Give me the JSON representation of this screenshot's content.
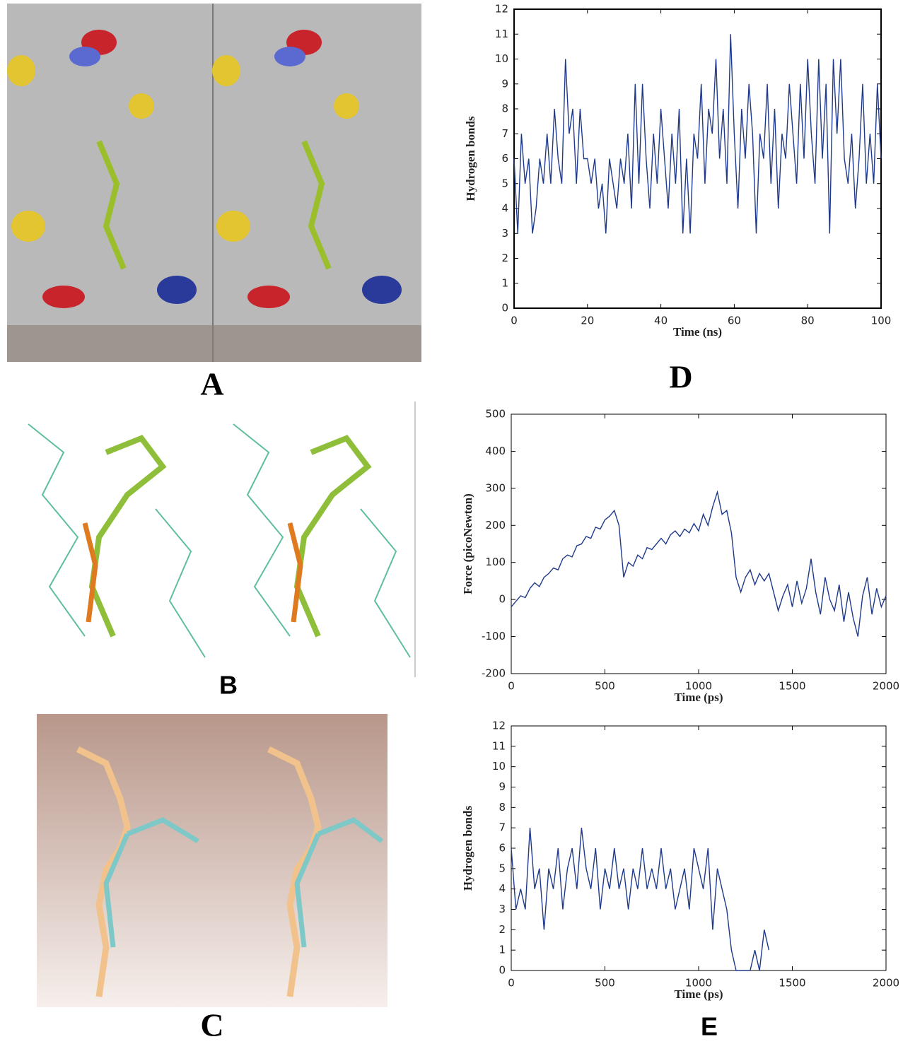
{
  "panels": [
    "A",
    "B",
    "C",
    "D",
    "E"
  ],
  "chart_data": [
    {
      "type": "line",
      "xlabel": "Time (ns)",
      "ylabel": "Hydrogen bonds",
      "x": [
        0,
        1,
        2,
        3,
        4,
        5,
        6,
        7,
        8,
        9,
        10,
        11,
        12,
        13,
        14,
        15,
        16,
        17,
        18,
        19,
        20,
        21,
        22,
        23,
        24,
        25,
        26,
        27,
        28,
        29,
        30,
        31,
        32,
        33,
        34,
        35,
        36,
        37,
        38,
        39,
        40,
        41,
        42,
        43,
        44,
        45,
        46,
        47,
        48,
        49,
        50,
        51,
        52,
        53,
        54,
        55,
        56,
        57,
        58,
        59,
        60,
        61,
        62,
        63,
        64,
        65,
        66,
        67,
        68,
        69,
        70,
        71,
        72,
        73,
        74,
        75,
        76,
        77,
        78,
        79,
        80,
        81,
        82,
        83,
        84,
        85,
        86,
        87,
        88,
        89,
        90,
        91,
        92,
        93,
        94,
        95,
        96,
        97,
        98,
        99,
        100
      ],
      "series": [
        {
          "color": "#1f3a8a",
          "values": [
            6,
            3,
            7,
            5,
            6,
            3,
            4,
            6,
            5,
            7,
            5,
            8,
            6,
            5,
            10,
            7,
            8,
            5,
            8,
            6,
            6,
            5,
            6,
            4,
            5,
            3,
            6,
            5,
            4,
            6,
            5,
            7,
            4,
            9,
            5,
            9,
            6,
            4,
            7,
            5,
            8,
            6,
            4,
            7,
            5,
            8,
            3,
            6,
            3,
            7,
            6,
            9,
            5,
            8,
            7,
            10,
            6,
            8,
            5,
            11,
            7,
            4,
            8,
            6,
            9,
            7,
            3,
            7,
            6,
            9,
            5,
            8,
            4,
            7,
            6,
            9,
            7,
            5,
            9,
            6,
            10,
            7,
            5,
            10,
            6,
            9,
            3,
            10,
            7,
            10,
            6,
            5,
            7,
            4,
            6,
            9,
            5,
            7,
            5,
            9,
            6
          ]
        }
      ],
      "xlim": [
        0,
        100
      ],
      "ylim": [
        0,
        12
      ],
      "xticks": [
        0,
        20,
        40,
        60,
        80,
        100
      ],
      "yticks": [
        0,
        1,
        2,
        3,
        4,
        5,
        6,
        7,
        8,
        9,
        10,
        11,
        12
      ]
    },
    {
      "type": "line",
      "xlabel": "Time (ps)",
      "ylabel": "Force (picoNewton)",
      "x": [
        0,
        25,
        50,
        75,
        100,
        125,
        150,
        175,
        200,
        225,
        250,
        275,
        300,
        325,
        350,
        375,
        400,
        425,
        450,
        475,
        500,
        525,
        550,
        575,
        600,
        625,
        650,
        675,
        700,
        725,
        750,
        775,
        800,
        825,
        850,
        875,
        900,
        925,
        950,
        975,
        1000,
        1025,
        1050,
        1075,
        1100,
        1125,
        1150,
        1175,
        1200,
        1225,
        1250,
        1275,
        1300,
        1325,
        1350,
        1375,
        1400,
        1425,
        1450,
        1475,
        1500,
        1525,
        1550,
        1575,
        1600,
        1625,
        1650,
        1675,
        1700,
        1725,
        1750,
        1775,
        1800,
        1825,
        1850,
        1875,
        1900,
        1925,
        1950,
        1975,
        2000
      ],
      "series": [
        {
          "color": "#1f3a8a",
          "values": [
            -20,
            -5,
            10,
            5,
            30,
            45,
            35,
            60,
            70,
            85,
            80,
            110,
            120,
            115,
            145,
            150,
            170,
            165,
            195,
            190,
            215,
            225,
            240,
            200,
            60,
            100,
            90,
            120,
            110,
            140,
            135,
            150,
            165,
            150,
            175,
            185,
            170,
            190,
            180,
            205,
            185,
            230,
            200,
            250,
            290,
            230,
            240,
            180,
            60,
            20,
            60,
            80,
            40,
            70,
            50,
            70,
            20,
            -30,
            10,
            40,
            -20,
            50,
            -10,
            30,
            110,
            20,
            -40,
            60,
            0,
            -30,
            40,
            -60,
            20,
            -50,
            -100,
            10,
            60,
            -40,
            30,
            -20,
            10
          ]
        }
      ],
      "xlim": [
        0,
        2000
      ],
      "ylim": [
        -200,
        500
      ],
      "xticks": [
        0,
        500,
        1000,
        1500,
        2000
      ],
      "yticks": [
        -200,
        -100,
        0,
        100,
        200,
        300,
        400,
        500
      ]
    },
    {
      "type": "line",
      "xlabel": "Time (ps)",
      "ylabel": "Hydrogen bonds",
      "x": [
        0,
        25,
        50,
        75,
        100,
        125,
        150,
        175,
        200,
        225,
        250,
        275,
        300,
        325,
        350,
        375,
        400,
        425,
        450,
        475,
        500,
        525,
        550,
        575,
        600,
        625,
        650,
        675,
        700,
        725,
        750,
        775,
        800,
        825,
        850,
        875,
        900,
        925,
        950,
        975,
        1000,
        1025,
        1050,
        1075,
        1100,
        1125,
        1150,
        1175,
        1200,
        1225,
        1250,
        1275,
        1300,
        1325,
        1350,
        1375
      ],
      "series": [
        {
          "color": "#1f3a8a",
          "values": [
            6,
            3,
            4,
            3,
            7,
            4,
            5,
            2,
            5,
            4,
            6,
            3,
            5,
            6,
            4,
            7,
            5,
            4,
            6,
            3,
            5,
            4,
            6,
            4,
            5,
            3,
            5,
            4,
            6,
            4,
            5,
            4,
            6,
            4,
            5,
            3,
            4,
            5,
            3,
            6,
            5,
            4,
            6,
            2,
            5,
            4,
            3,
            1,
            0,
            0,
            0,
            0,
            1,
            0,
            2,
            1
          ]
        }
      ],
      "xlim": [
        0,
        2000
      ],
      "ylim": [
        0,
        12
      ],
      "xticks": [
        0,
        500,
        1000,
        1500,
        2000
      ],
      "yticks": [
        0,
        1,
        2,
        3,
        4,
        5,
        6,
        7,
        8,
        9,
        10,
        11,
        12
      ]
    }
  ]
}
